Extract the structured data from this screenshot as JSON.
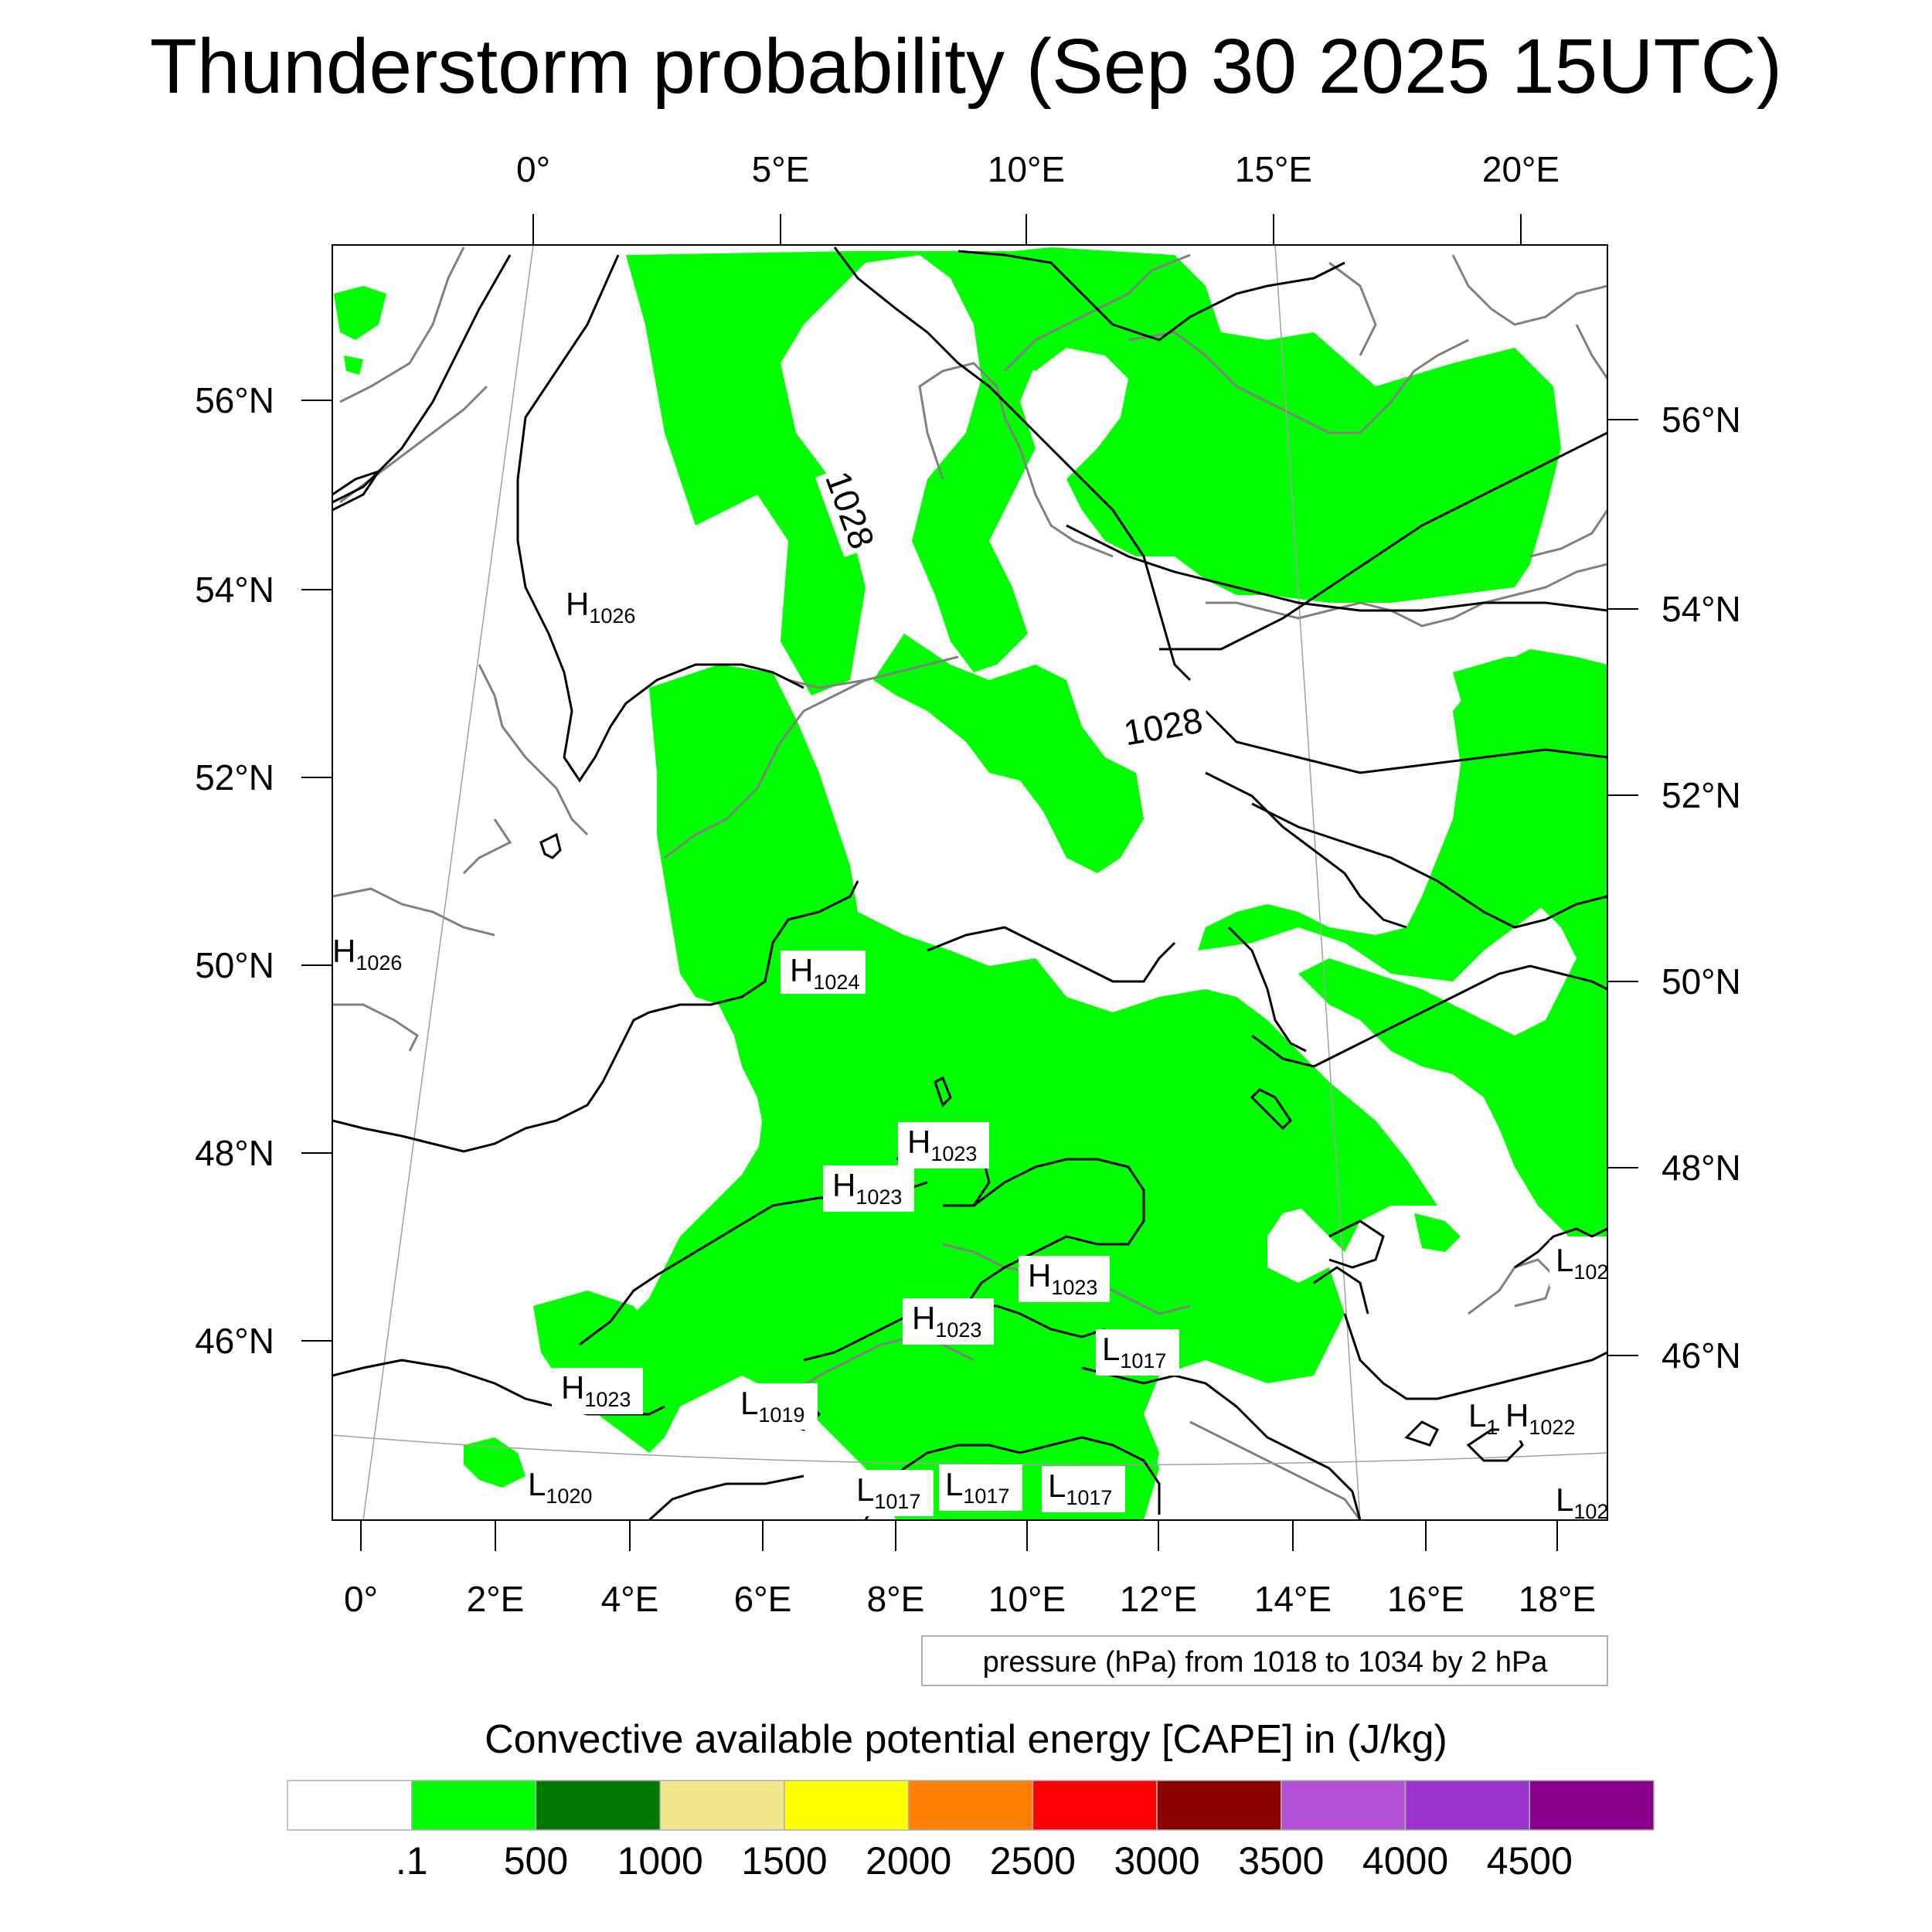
{
  "title": "Thunderstorm probability (Sep 30 2025 15UTC)",
  "top_lon_labels": [
    "0°",
    "5°E",
    "10°E",
    "15°E",
    "20°E"
  ],
  "bottom_lon_labels": [
    "0°",
    "2°E",
    "4°E",
    "6°E",
    "8°E",
    "10°E",
    "12°E",
    "14°E",
    "16°E",
    "18°E"
  ],
  "left_lat_labels": [
    "56°N",
    "54°N",
    "52°N",
    "50°N",
    "48°N",
    "46°N"
  ],
  "right_lat_labels": [
    "56°N",
    "54°N",
    "52°N",
    "50°N",
    "48°N",
    "46°N"
  ],
  "isobar_labels": [
    "1028",
    "1028"
  ],
  "pressure_centers": [
    {
      "type": "H",
      "value": "1026"
    },
    {
      "type": "H",
      "value": "1026"
    },
    {
      "type": "H",
      "value": "1024"
    },
    {
      "type": "H",
      "value": "1023"
    },
    {
      "type": "H",
      "value": "1023"
    },
    {
      "type": "H",
      "value": "1023"
    },
    {
      "type": "H",
      "value": "1023"
    },
    {
      "type": "H",
      "value": "1023"
    },
    {
      "type": "L",
      "value": "1019"
    },
    {
      "type": "L",
      "value": "1017"
    },
    {
      "type": "L",
      "value": "1017"
    },
    {
      "type": "L",
      "value": "1017"
    },
    {
      "type": "L",
      "value": "1017"
    },
    {
      "type": "L",
      "value": "1020"
    },
    {
      "type": "L",
      "value": "102"
    },
    {
      "type": "L",
      "value": "1"
    },
    {
      "type": "H",
      "value": "1022"
    },
    {
      "type": "L",
      "value": "102"
    }
  ],
  "contour_info": "pressure (hPa) from 1018 to 1034 by 2 hPa",
  "colorbar": {
    "title": "Convective available potential energy [CAPE] in (J/kg)",
    "labels": [
      ".1",
      "500",
      "1000",
      "1500",
      "2000",
      "2500",
      "3000",
      "3500",
      "4000",
      "4500"
    ],
    "colors": [
      "#ffffff",
      "#00ff00",
      "#007a00",
      "#f0e68c",
      "#ffff00",
      "#ff8000",
      "#ff0000",
      "#8b0000",
      "#b452d6",
      "#9a32cd",
      "#8b008b"
    ]
  },
  "colors": {
    "cape_green": "#00ff00",
    "isobar": "#000000",
    "coastline": "#808080"
  }
}
